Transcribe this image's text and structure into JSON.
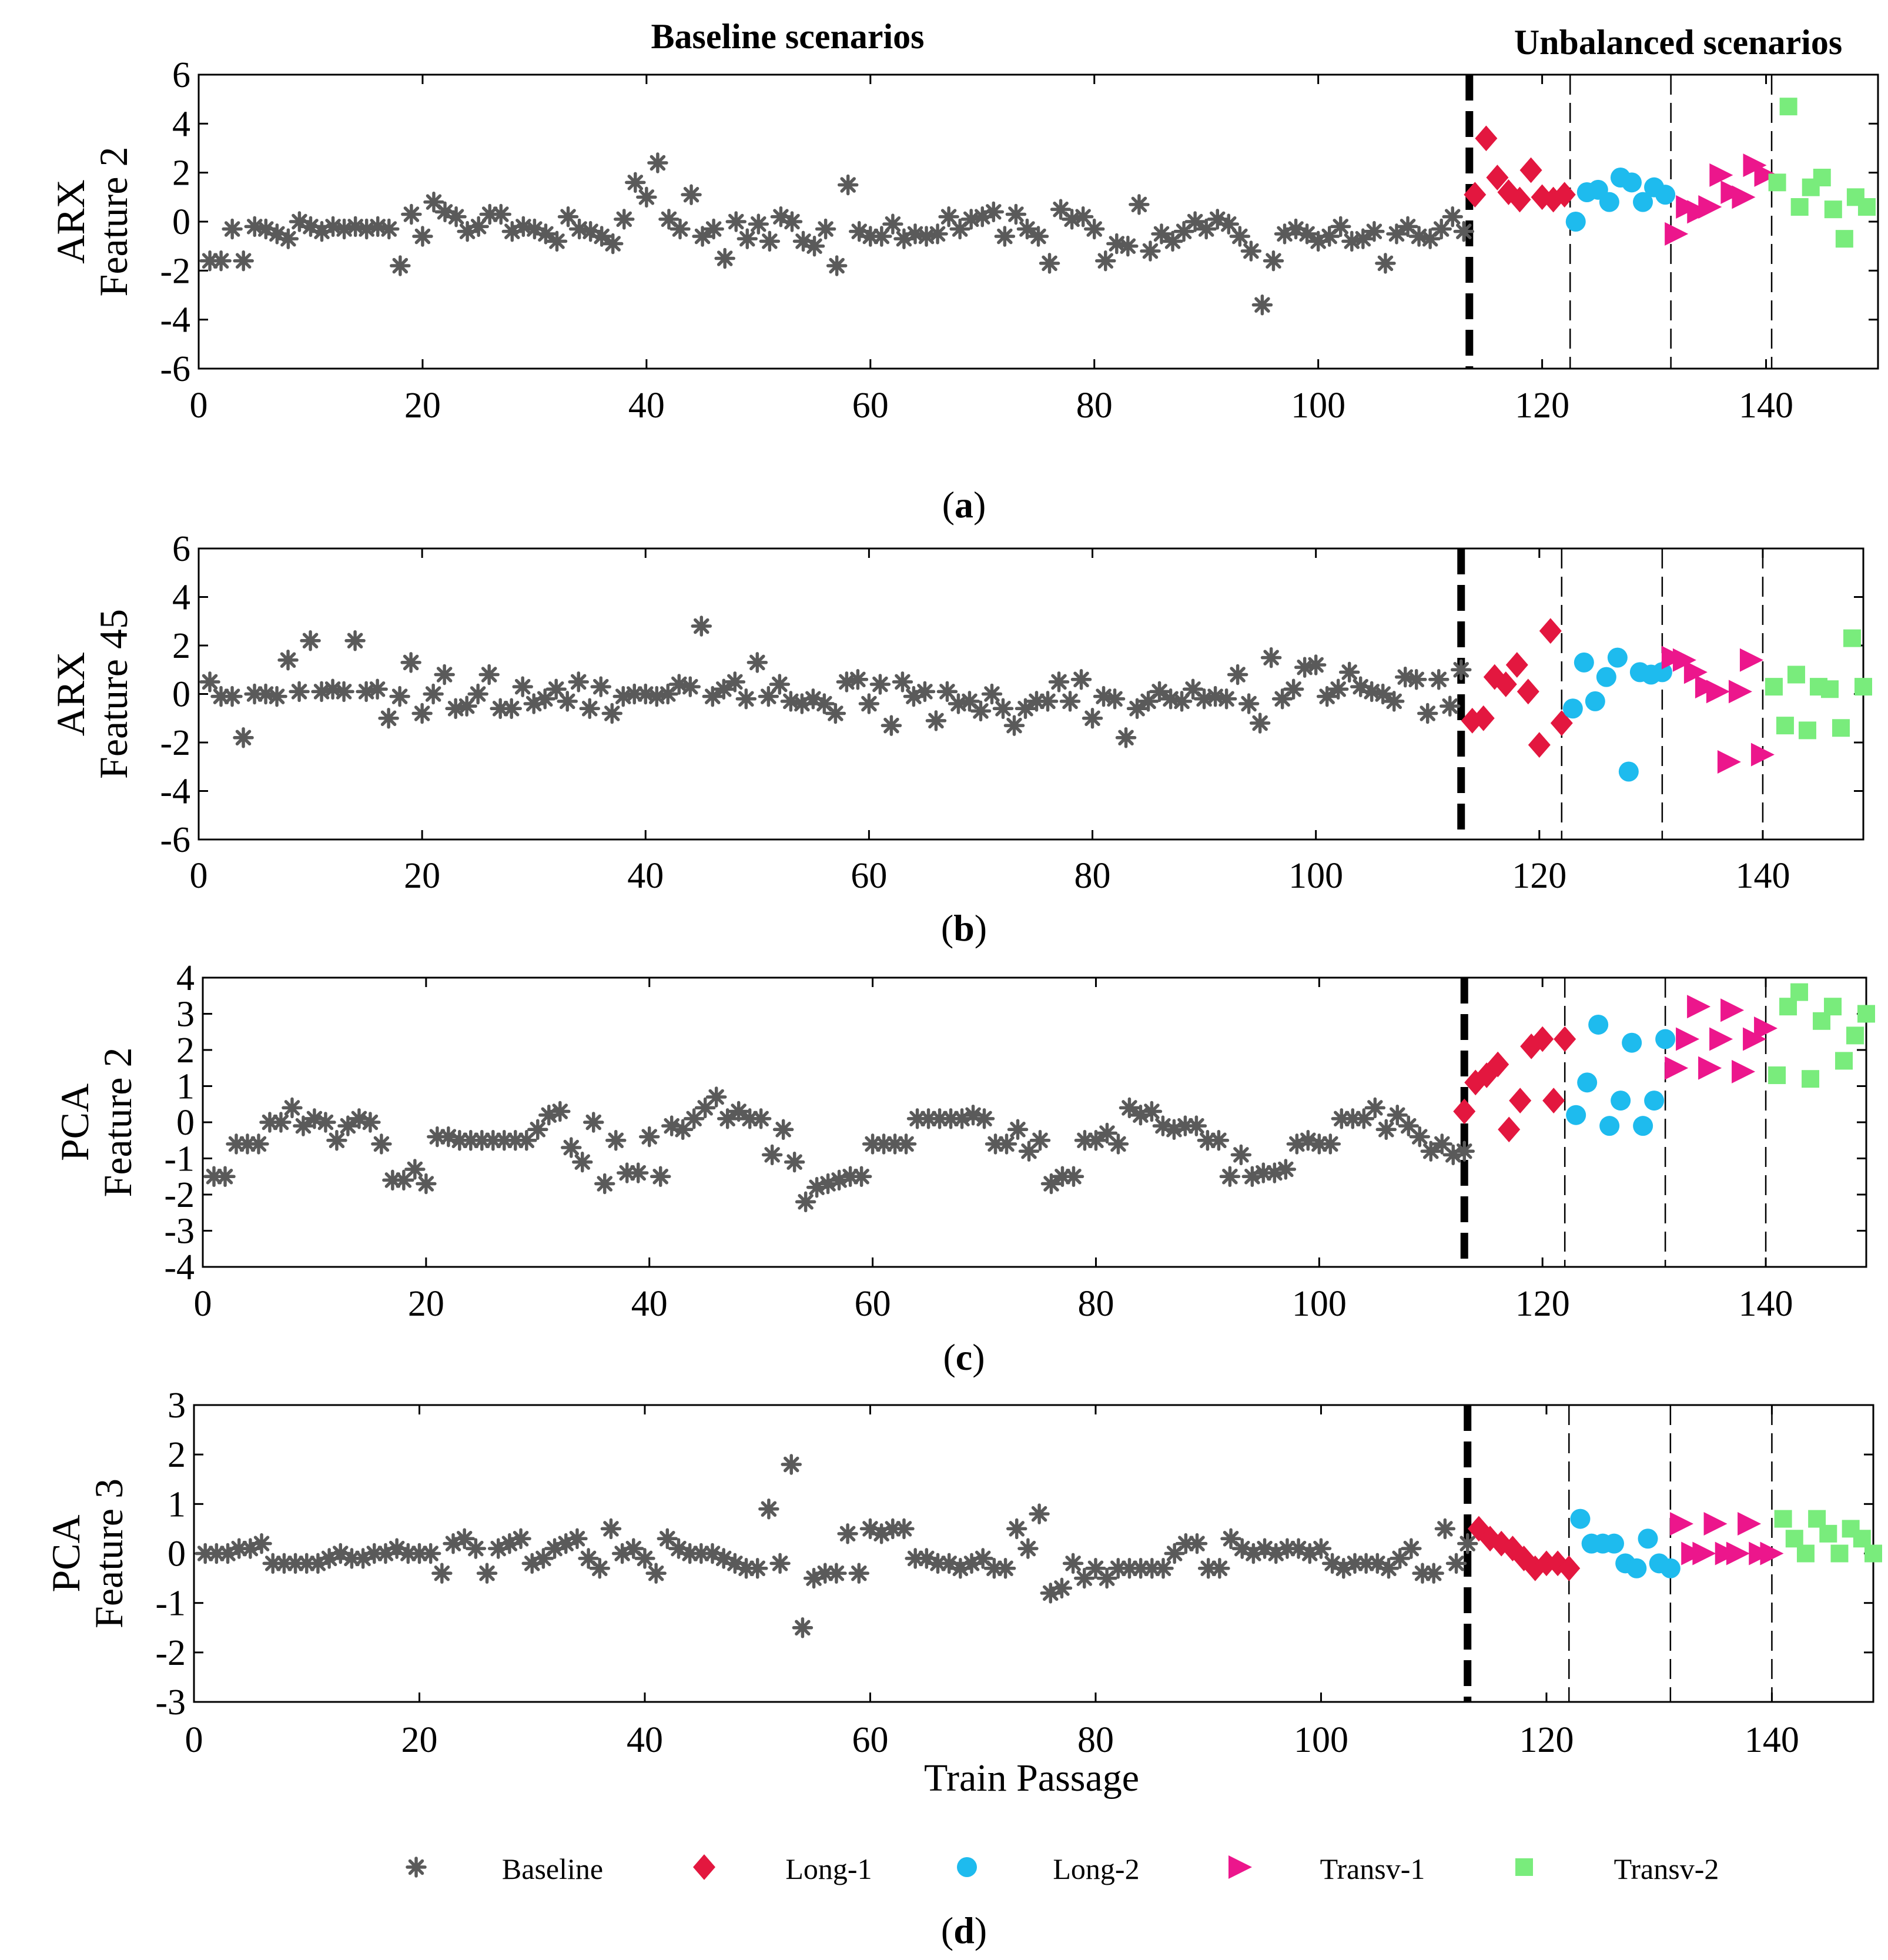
{
  "colors": {
    "Baseline": "#5a5a5a",
    "Long-1": "#e3173f",
    "Long-2": "#1ebbee",
    "Transv-1": "#ec168c",
    "Transv-2": "#79ec7c"
  },
  "headers": {
    "baseline": "Baseline scenarios",
    "unbalanced": "Unbalanced scenarios"
  },
  "legend": [
    {
      "name": "Baseline",
      "marker": "asterisk"
    },
    {
      "name": "Long-1",
      "marker": "diamond"
    },
    {
      "name": "Long-2",
      "marker": "circle"
    },
    {
      "name": "Transv-1",
      "marker": "triangle-right"
    },
    {
      "name": "Transv-2",
      "marker": "square"
    }
  ],
  "chart_data": [
    {
      "type": "scatter",
      "panel": "(a)",
      "caption_letter": "a",
      "ylabel": [
        "ARX",
        "Feature 2"
      ],
      "xlabel": "",
      "xlim": [
        0,
        150
      ],
      "ylim": [
        -6,
        6
      ],
      "xticks": [
        0,
        20,
        40,
        60,
        80,
        100,
        120,
        140
      ],
      "yticks": [
        -6,
        -4,
        -2,
        0,
        2,
        4,
        6
      ],
      "thick_separator": 113.5,
      "thin_separators": [
        122.5,
        131.5,
        140.5
      ],
      "baseline_values": [
        -1.6,
        -1.6,
        -0.3,
        -1.6,
        -0.2,
        -0.3,
        -0.5,
        -0.7,
        0.0,
        -0.2,
        -0.4,
        -0.2,
        -0.3,
        -0.2,
        -0.3,
        -0.2,
        -0.3,
        -1.8,
        0.3,
        -0.6,
        0.8,
        0.4,
        0.2,
        -0.4,
        -0.2,
        0.3,
        0.3,
        -0.4,
        -0.2,
        -0.3,
        -0.5,
        -0.8,
        0.2,
        -0.3,
        -0.4,
        -0.6,
        -0.9,
        0.1,
        1.6,
        1.0,
        2.4,
        0.1,
        -0.3,
        1.1,
        -0.6,
        -0.3,
        -1.5,
        0.0,
        -0.7,
        -0.1,
        -0.8,
        0.2,
        0.0,
        -0.8,
        -1.0,
        -0.3,
        -1.8,
        1.5,
        -0.4,
        -0.6,
        -0.6,
        -0.1,
        -0.7,
        -0.5,
        -0.6,
        -0.5,
        0.2,
        -0.3,
        0.1,
        0.2,
        0.4,
        -0.6,
        0.3,
        -0.3,
        -0.6,
        -1.7,
        0.5,
        0.1,
        0.2,
        -0.3,
        -1.6,
        -0.9,
        -1.0,
        0.7,
        -1.2,
        -0.5,
        -0.8,
        -0.4,
        0.0,
        -0.3,
        0.1,
        -0.1,
        -0.6,
        -1.2,
        -3.4,
        -1.6,
        -0.5,
        -0.3,
        -0.5,
        -0.8,
        -0.6,
        -0.2,
        -0.8,
        -0.7,
        -0.4,
        -1.7,
        -0.5,
        -0.2,
        -0.6,
        -0.7,
        -0.3,
        0.2,
        -0.4
      ],
      "groups": [
        {
          "name": "Long-1",
          "x": [
            114,
            115,
            116,
            117,
            118,
            119,
            120,
            121,
            122
          ],
          "y": [
            1.1,
            3.4,
            1.8,
            1.2,
            0.9,
            2.1,
            1.0,
            0.9,
            1.1
          ]
        },
        {
          "name": "Long-2",
          "x": [
            123,
            124,
            125,
            126,
            127,
            128,
            129,
            130,
            131
          ],
          "y": [
            0.0,
            1.2,
            1.3,
            0.8,
            1.8,
            1.6,
            0.8,
            1.4,
            1.1
          ]
        },
        {
          "name": "Transv-1",
          "x": [
            132,
            133,
            134,
            135,
            136,
            137,
            138,
            139,
            140
          ],
          "y": [
            -0.5,
            0.6,
            0.4,
            0.6,
            1.9,
            1.2,
            1.0,
            2.3,
            1.9
          ]
        },
        {
          "name": "Transv-2",
          "x": [
            141,
            142,
            143,
            144,
            145,
            146,
            147,
            148,
            149
          ],
          "y": [
            1.6,
            4.7,
            0.6,
            1.4,
            1.8,
            0.5,
            -0.7,
            1.0,
            0.6
          ]
        }
      ]
    },
    {
      "type": "scatter",
      "panel": "(b)",
      "caption_letter": "b",
      "ylabel": [
        "ARX",
        "Feature 45"
      ],
      "xlabel": "",
      "xlim": [
        0,
        149
      ],
      "ylim": [
        -6,
        6
      ],
      "xticks": [
        0,
        20,
        40,
        60,
        80,
        100,
        120,
        140
      ],
      "yticks": [
        -6,
        -4,
        -2,
        0,
        2,
        4,
        6
      ],
      "thick_separator": 113,
      "thin_separators": [
        122,
        131,
        140
      ],
      "baseline_values": [
        0.5,
        -0.1,
        -0.1,
        -1.8,
        0.0,
        0.0,
        -0.1,
        1.4,
        0.1,
        2.2,
        0.1,
        0.2,
        0.1,
        2.2,
        0.1,
        0.2,
        -1.0,
        -0.1,
        1.3,
        -0.8,
        0.0,
        0.8,
        -0.6,
        -0.5,
        0.0,
        0.8,
        -0.6,
        -0.6,
        0.3,
        -0.4,
        -0.2,
        0.2,
        -0.3,
        0.5,
        -0.6,
        0.3,
        -0.8,
        -0.1,
        0.0,
        0.0,
        -0.1,
        0.0,
        0.4,
        0.3,
        2.8,
        -0.1,
        0.2,
        0.5,
        -0.2,
        1.3,
        -0.1,
        0.4,
        -0.3,
        -0.4,
        -0.2,
        -0.4,
        -0.8,
        0.5,
        0.6,
        -0.4,
        0.4,
        -1.3,
        0.5,
        -0.1,
        0.1,
        -1.1,
        0.1,
        -0.4,
        -0.3,
        -0.7,
        0.0,
        -0.6,
        -1.3,
        -0.6,
        -0.3,
        -0.3,
        0.5,
        -0.3,
        0.6,
        -1.0,
        -0.1,
        -0.2,
        -1.8,
        -0.6,
        -0.3,
        0.1,
        -0.2,
        -0.3,
        0.2,
        -0.2,
        -0.1,
        -0.2,
        0.8,
        -0.4,
        -1.2,
        1.5,
        -0.2,
        0.2,
        1.1,
        1.2,
        -0.1,
        0.2,
        0.9,
        0.3,
        0.1,
        0.0,
        -0.3,
        0.7,
        0.6,
        -0.8,
        0.6,
        -0.5,
        1.0
      ],
      "groups": [
        {
          "name": "Long-1",
          "x": [
            114,
            115,
            116,
            117,
            118,
            119,
            120,
            121,
            122
          ],
          "y": [
            -1.1,
            -1.0,
            0.7,
            0.4,
            1.2,
            0.1,
            -2.1,
            2.6,
            -1.2
          ]
        },
        {
          "name": "Long-2",
          "x": [
            123,
            124,
            125,
            126,
            127,
            128,
            129,
            130,
            131
          ],
          "y": [
            -0.6,
            1.3,
            -0.3,
            0.7,
            1.5,
            -3.2,
            0.9,
            0.8,
            0.9
          ]
        },
        {
          "name": "Transv-1",
          "x": [
            132,
            133,
            134,
            135,
            136,
            137,
            138,
            139,
            140
          ],
          "y": [
            1.5,
            1.4,
            0.9,
            0.3,
            0.1,
            -2.8,
            0.1,
            1.4,
            -2.5
          ]
        },
        {
          "name": "Transv-2",
          "x": [
            141,
            142,
            143,
            144,
            145,
            146,
            147,
            148,
            149
          ],
          "y": [
            0.3,
            -1.3,
            0.8,
            -1.5,
            0.3,
            0.2,
            -1.4,
            2.3,
            0.3
          ]
        }
      ]
    },
    {
      "type": "scatter",
      "panel": "(c)",
      "caption_letter": "c",
      "ylabel": [
        "PCA",
        "Feature 2"
      ],
      "xlabel": "",
      "xlim": [
        0,
        149
      ],
      "ylim": [
        -4,
        4
      ],
      "xticks": [
        0,
        20,
        40,
        60,
        80,
        100,
        120,
        140
      ],
      "yticks": [
        -4,
        -3,
        -2,
        -1,
        0,
        1,
        2,
        3,
        4
      ],
      "thick_separator": 113,
      "thin_separators": [
        122,
        131,
        140
      ],
      "baseline_values": [
        -1.5,
        -1.5,
        -0.6,
        -0.6,
        -0.6,
        0.0,
        0.0,
        0.4,
        -0.1,
        0.1,
        0.0,
        -0.5,
        -0.1,
        0.1,
        0.0,
        -0.6,
        -1.6,
        -1.6,
        -1.3,
        -1.7,
        -0.4,
        -0.4,
        -0.5,
        -0.5,
        -0.5,
        -0.5,
        -0.5,
        -0.5,
        -0.5,
        -0.2,
        0.2,
        0.3,
        -0.7,
        -1.1,
        0.0,
        -1.7,
        -0.5,
        -1.4,
        -1.4,
        -0.4,
        -1.5,
        -0.1,
        -0.2,
        0.1,
        0.4,
        0.7,
        0.1,
        0.3,
        0.1,
        0.1,
        -0.9,
        -0.2,
        -1.1,
        -2.2,
        -1.8,
        -1.7,
        -1.6,
        -1.5,
        -1.5,
        -0.6,
        -0.6,
        -0.6,
        -0.6,
        0.1,
        0.1,
        0.1,
        0.1,
        0.1,
        0.2,
        0.1,
        -0.6,
        -0.6,
        -0.2,
        -0.8,
        -0.5,
        -1.7,
        -1.5,
        -1.5,
        -0.5,
        -0.5,
        -0.3,
        -0.6,
        0.4,
        0.2,
        0.3,
        -0.1,
        -0.2,
        -0.1,
        -0.1,
        -0.5,
        -0.5,
        -1.5,
        -0.9,
        -1.5,
        -1.4,
        -1.4,
        -1.3,
        -0.6,
        -0.5,
        -0.6,
        -0.6,
        0.1,
        0.1,
        0.1,
        0.4,
        -0.2,
        0.2,
        -0.1,
        -0.4,
        -0.8,
        -0.6,
        -0.9,
        -0.8
      ],
      "groups": [
        {
          "name": "Long-1",
          "x": [
            113,
            114,
            115,
            116,
            117,
            118,
            119,
            120,
            121,
            122
          ],
          "y": [
            0.3,
            1.1,
            1.3,
            1.6,
            -0.2,
            0.6,
            2.1,
            2.3,
            0.6,
            2.3
          ]
        },
        {
          "name": "Long-2",
          "x": [
            123,
            124,
            125,
            126,
            127,
            128,
            129,
            130,
            131
          ],
          "y": [
            0.2,
            1.1,
            2.7,
            -0.1,
            0.6,
            2.2,
            -0.1,
            0.6,
            2.3
          ]
        },
        {
          "name": "Transv-1",
          "x": [
            132,
            133,
            134,
            135,
            136,
            137,
            138,
            139,
            140
          ],
          "y": [
            1.5,
            2.3,
            3.2,
            1.5,
            2.3,
            3.1,
            1.4,
            2.3,
            2.6
          ]
        },
        {
          "name": "Transv-2",
          "x": [
            141,
            142,
            143,
            144,
            145,
            146,
            147,
            148,
            149
          ],
          "y": [
            1.3,
            3.2,
            3.6,
            1.2,
            2.8,
            3.2,
            1.7,
            2.4,
            3.0
          ]
        }
      ]
    },
    {
      "type": "scatter",
      "panel": "(d)",
      "caption_letter": "d",
      "ylabel": [
        "PCA",
        "Feature 3"
      ],
      "xlabel": "Train Passage",
      "xlim": [
        0,
        149
      ],
      "ylim": [
        -3,
        3
      ],
      "xticks": [
        0,
        20,
        40,
        60,
        80,
        100,
        120,
        140
      ],
      "yticks": [
        -3,
        -2,
        -1,
        0,
        1,
        2,
        3
      ],
      "thick_separator": 113,
      "thin_separators": [
        122,
        131,
        140
      ],
      "baseline_values": [
        0.0,
        0.0,
        0.0,
        0.1,
        0.1,
        0.2,
        -0.2,
        -0.2,
        -0.2,
        -0.2,
        -0.2,
        -0.1,
        0.0,
        -0.1,
        -0.1,
        0.0,
        0.0,
        0.1,
        0.0,
        0.0,
        0.0,
        -0.4,
        0.2,
        0.3,
        0.1,
        -0.4,
        0.1,
        0.2,
        0.3,
        -0.2,
        -0.1,
        0.1,
        0.2,
        0.3,
        -0.1,
        -0.3,
        0.5,
        0.0,
        0.1,
        -0.1,
        -0.4,
        0.3,
        0.1,
        0.0,
        0.0,
        0.0,
        -0.1,
        -0.2,
        -0.3,
        -0.3,
        0.9,
        -0.2,
        1.8,
        -1.5,
        -0.5,
        -0.4,
        -0.4,
        0.4,
        -0.4,
        0.5,
        0.4,
        0.5,
        0.5,
        -0.1,
        -0.1,
        -0.2,
        -0.2,
        -0.3,
        -0.2,
        -0.1,
        -0.3,
        -0.3,
        0.5,
        0.1,
        0.8,
        -0.8,
        -0.7,
        -0.2,
        -0.5,
        -0.3,
        -0.5,
        -0.3,
        -0.3,
        -0.3,
        -0.3,
        -0.3,
        0.0,
        0.2,
        0.2,
        -0.3,
        -0.3,
        0.3,
        0.1,
        0.0,
        0.1,
        0.0,
        0.1,
        0.1,
        0.0,
        0.1,
        -0.2,
        -0.3,
        -0.2,
        -0.2,
        -0.2,
        -0.3,
        -0.1,
        0.1,
        -0.4,
        -0.4,
        0.5,
        -0.2,
        0.2
      ],
      "groups": [
        {
          "name": "Long-1",
          "x": [
            114,
            115,
            116,
            117,
            118,
            119,
            120,
            121,
            122
          ],
          "y": [
            0.5,
            0.3,
            0.2,
            0.1,
            -0.1,
            -0.3,
            -0.2,
            -0.2,
            -0.3
          ]
        },
        {
          "name": "Long-2",
          "x": [
            123,
            124,
            125,
            126,
            127,
            128,
            129,
            130,
            131
          ],
          "y": [
            0.7,
            0.2,
            0.2,
            0.2,
            -0.2,
            -0.3,
            0.3,
            -0.2,
            -0.3
          ]
        },
        {
          "name": "Transv-1",
          "x": [
            132,
            133,
            134,
            135,
            136,
            137,
            138,
            139,
            140
          ],
          "y": [
            0.6,
            0.0,
            0.0,
            0.6,
            0.0,
            0.0,
            0.6,
            0.0,
            0.0
          ]
        },
        {
          "name": "Transv-2",
          "x": [
            141,
            142,
            143,
            144,
            145,
            146,
            147,
            148,
            149
          ],
          "y": [
            0.7,
            0.3,
            0.0,
            0.7,
            0.4,
            0.0,
            0.5,
            0.3,
            0.0
          ]
        }
      ]
    }
  ]
}
